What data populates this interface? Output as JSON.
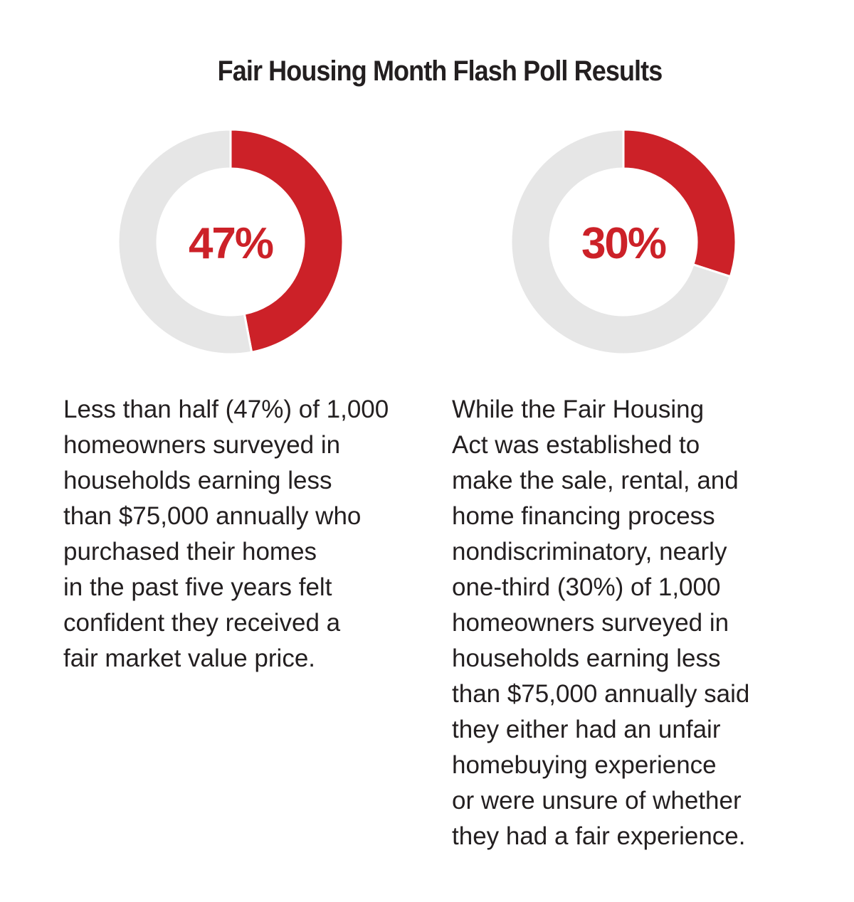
{
  "title": "Fair Housing Month Flash Poll Results",
  "colors": {
    "accent": "#cc2128",
    "track": "#e6e6e6",
    "text": "#231f20"
  },
  "chart_data": [
    {
      "type": "pie",
      "variant": "donut",
      "center_label": "47%",
      "slices": [
        {
          "value": 47,
          "color": "#cc2128"
        },
        {
          "value": 53,
          "color": "#e6e6e6"
        }
      ],
      "description_lines": [
        "Less than half (47%) of 1,000",
        "homeowners surveyed in",
        "households earning less",
        "than $75,000 annually who",
        "purchased their homes",
        "in the past five years felt",
        "confident they received a",
        "fair market value price."
      ]
    },
    {
      "type": "pie",
      "variant": "donut",
      "center_label": "30%",
      "slices": [
        {
          "value": 30,
          "color": "#cc2128"
        },
        {
          "value": 70,
          "color": "#e6e6e6"
        }
      ],
      "description_lines": [
        "While the Fair Housing",
        "Act was established to",
        "make the sale, rental, and",
        "home financing process",
        "nondiscriminatory, nearly",
        "one-third (30%) of 1,000",
        "homeowners surveyed in",
        "households earning less",
        "than $75,000 annually said",
        "they either had an unfair",
        "homebuying experience",
        "or were unsure of whether",
        "they had a fair experience."
      ]
    }
  ]
}
